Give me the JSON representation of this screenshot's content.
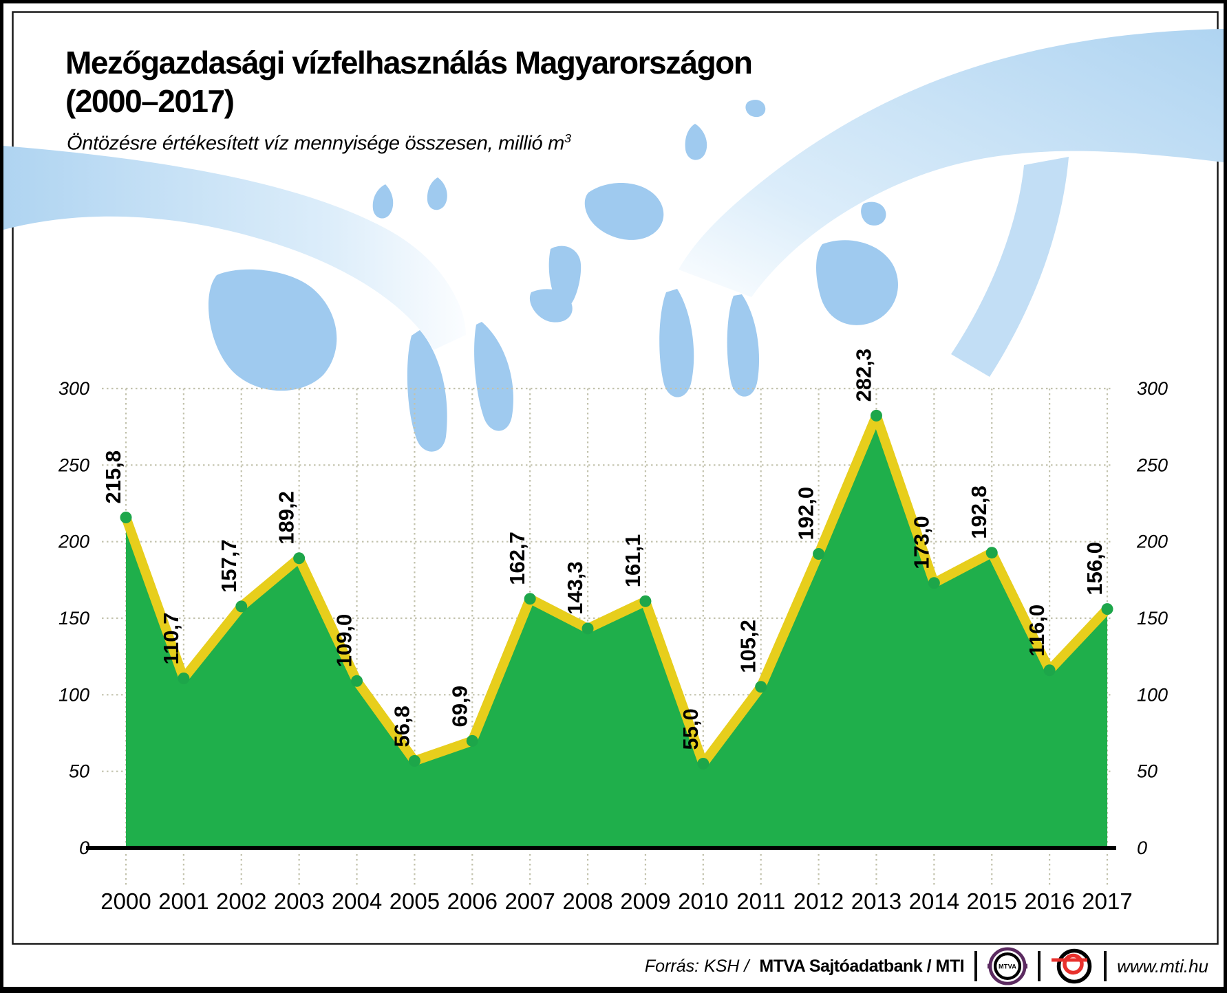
{
  "title": {
    "line1": "Mezőgazdasági vízfelhasználás Magyarországon",
    "line2": "(2000–2017)"
  },
  "subtitle": {
    "text": "Öntözésre értékesített víz mennyisége összesen, millió m",
    "sup": "3"
  },
  "chart_data": {
    "type": "area",
    "title": "Öntözésre értékesített víz mennyisége összesen, millió m3",
    "categories": [
      "2000",
      "2001",
      "2002",
      "2003",
      "2004",
      "2005",
      "2006",
      "2007",
      "2008",
      "2009",
      "2010",
      "2011",
      "2012",
      "2013",
      "2014",
      "2015",
      "2016",
      "2017"
    ],
    "values": [
      215.8,
      110.7,
      157.7,
      189.2,
      109.0,
      56.8,
      69.9,
      162.7,
      143.3,
      161.1,
      55.0,
      105.2,
      192.0,
      282.3,
      173.0,
      192.8,
      116.0,
      156.0
    ],
    "value_labels": [
      "215,8",
      "110,7",
      "157,7",
      "189,2",
      "109,0",
      "56,8",
      "69,9",
      "162,7",
      "143,3",
      "161,1",
      "55,0",
      "105,2",
      "192,0",
      "282,3",
      "173,0",
      "192,8",
      "116,0",
      "156,0"
    ],
    "ylim": [
      0,
      300
    ],
    "yticks": [
      0,
      50,
      100,
      150,
      200,
      250,
      300
    ],
    "grid": true,
    "legend": "none",
    "colors": {
      "area_fill": "#1FAF4B",
      "line": "#E7CE1C",
      "marker": "#1DA64A",
      "gridline": "#C2C2AC",
      "axis": "#000000",
      "splash_blue": "#9FCAEF",
      "stream_blue": "#AFD4F1"
    }
  },
  "footer": {
    "source_italic": "Forrás: KSH /",
    "source_bold": "MTVA Sajtóadatbank / MTI",
    "mtva_text": "MTVA",
    "website": "www.mti.hu"
  }
}
